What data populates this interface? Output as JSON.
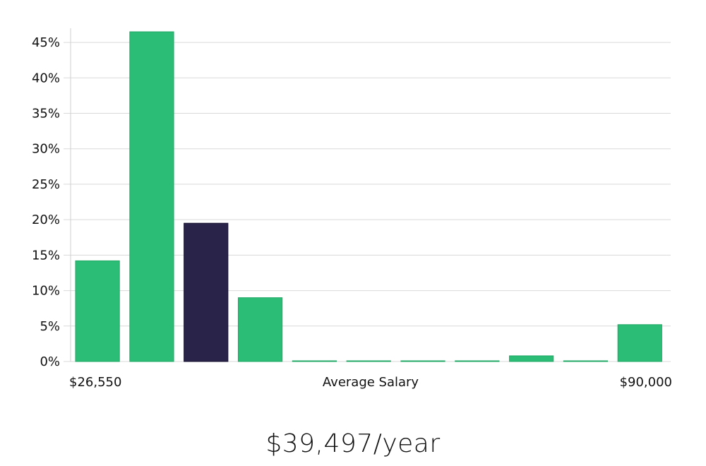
{
  "chart_data": {
    "type": "bar",
    "title": "",
    "xlabel": "Average Salary",
    "ylabel": "",
    "x_range_labels": {
      "min": "$26,550",
      "max": "$90,000"
    },
    "ylim": [
      0,
      47
    ],
    "y_ticks": [
      0,
      5,
      10,
      15,
      20,
      25,
      30,
      35,
      40,
      45
    ],
    "y_tick_suffix": "%",
    "grid": true,
    "values": [
      14.2,
      46.5,
      19.5,
      9.0,
      0.1,
      0.1,
      0.1,
      0.1,
      0.8,
      0.1,
      5.2
    ],
    "highlight_index": 2,
    "colors": {
      "bar": "#2bbd76",
      "highlight": "#29234a",
      "grid": "#d9d9d9",
      "axis": "#cfcfcf"
    }
  },
  "salary_display": "$39,497/year"
}
